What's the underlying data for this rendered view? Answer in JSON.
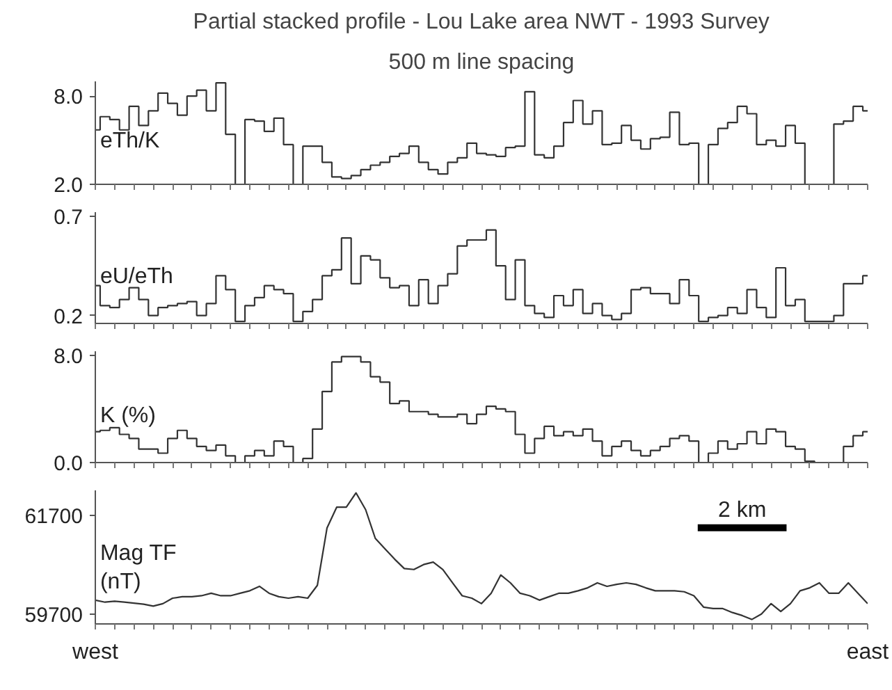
{
  "chart_data": [
    {
      "type": "step",
      "title": "Partial stacked profile - Lou Lake area NWT - 1993 Survey",
      "subtitle": "500 m line spacing",
      "ylabel": "eTh/K",
      "color": "#333333",
      "categories": [
        null,
        null,
        null,
        null,
        null,
        null,
        null,
        null,
        null,
        null,
        null,
        null,
        null,
        null,
        null,
        null,
        null,
        null,
        null,
        null,
        null,
        null,
        null,
        null,
        null,
        null,
        null,
        null,
        null,
        null,
        null,
        null,
        null,
        null,
        null,
        null,
        null,
        null,
        null,
        null,
        null,
        null,
        null,
        null,
        null,
        null,
        null,
        null,
        null,
        null,
        null,
        null,
        null,
        null,
        null,
        null,
        null,
        null,
        null,
        null,
        null,
        null,
        null,
        null,
        null,
        null,
        null,
        null,
        null,
        null,
        null,
        null,
        null,
        null,
        null,
        null,
        null,
        null,
        null,
        null,
        null
      ],
      "values": [
        5.7,
        6.6,
        6.4,
        5.7,
        7.3,
        6.0,
        7.0,
        8.2,
        7.5,
        6.7,
        8.0,
        8.4,
        7.0,
        8.9,
        5.4,
        2.0,
        6.4,
        6.3,
        5.6,
        6.5,
        4.7,
        2.0,
        4.6,
        4.6,
        3.5,
        2.5,
        2.4,
        2.6,
        3.0,
        3.3,
        3.5,
        3.9,
        4.1,
        4.6,
        3.5,
        3.0,
        2.7,
        3.5,
        3.8,
        4.8,
        4.1,
        4.0,
        3.9,
        4.5,
        4.6,
        8.3,
        4.0,
        3.8,
        4.6,
        6.2,
        7.7,
        6.1,
        7.0,
        4.7,
        4.8,
        6.0,
        5.0,
        4.4,
        5.1,
        5.2,
        6.9,
        4.7,
        4.8,
        2.0,
        4.7,
        5.8,
        6.2,
        7.3,
        6.8,
        4.7,
        5.0,
        4.6,
        6.0,
        4.8,
        2.0,
        2.0,
        2.0,
        6.1,
        6.3,
        7.3,
        7.0
      ],
      "ylim": [
        2.0,
        9.0
      ],
      "yticks": [
        {
          "value": 2,
          "label": "2.0"
        },
        {
          "value": 8,
          "label": "8.0"
        }
      ],
      "tick_labels": "y"
    },
    {
      "type": "step",
      "ylabel": "eU/eTh",
      "color": "#333333",
      "categories": [
        null,
        null,
        null,
        null,
        null,
        null,
        null,
        null,
        null,
        null,
        null,
        null,
        null,
        null,
        null,
        null,
        null,
        null,
        null,
        null,
        null,
        null,
        null,
        null,
        null,
        null,
        null,
        null,
        null,
        null,
        null,
        null,
        null,
        null,
        null,
        null,
        null,
        null,
        null,
        null,
        null,
        null,
        null,
        null,
        null,
        null,
        null,
        null,
        null,
        null,
        null,
        null,
        null,
        null,
        null,
        null,
        null,
        null,
        null,
        null,
        null,
        null,
        null,
        null,
        null,
        null,
        null,
        null,
        null,
        null,
        null,
        null,
        null,
        null,
        null,
        null,
        null,
        null,
        null,
        null,
        null
      ],
      "values": [
        0.35,
        0.25,
        0.24,
        0.28,
        0.34,
        0.28,
        0.2,
        0.24,
        0.25,
        0.26,
        0.27,
        0.2,
        0.26,
        0.4,
        0.33,
        0.17,
        0.25,
        0.29,
        0.35,
        0.33,
        0.31,
        0.17,
        0.22,
        0.28,
        0.4,
        0.43,
        0.59,
        0.36,
        0.5,
        0.48,
        0.39,
        0.34,
        0.35,
        0.25,
        0.38,
        0.26,
        0.35,
        0.41,
        0.55,
        0.58,
        0.58,
        0.63,
        0.45,
        0.28,
        0.48,
        0.25,
        0.21,
        0.19,
        0.3,
        0.25,
        0.33,
        0.21,
        0.26,
        0.2,
        0.18,
        0.21,
        0.33,
        0.34,
        0.31,
        0.31,
        0.26,
        0.38,
        0.3,
        0.17,
        0.19,
        0.2,
        0.24,
        0.21,
        0.33,
        0.24,
        0.19,
        0.44,
        0.25,
        0.28,
        0.17,
        0.17,
        0.17,
        0.2,
        0.36,
        0.36,
        0.4
      ],
      "ylim": [
        0.16,
        0.72
      ],
      "yticks": [
        0.2,
        0.7
      ],
      "tick_labels": "y"
    },
    {
      "type": "step",
      "ylabel": "K (%)",
      "color": "#333333",
      "categories": [
        null,
        null,
        null,
        null,
        null,
        null,
        null,
        null,
        null,
        null,
        null,
        null,
        null,
        null,
        null,
        null,
        null,
        null,
        null,
        null,
        null,
        null,
        null,
        null,
        null,
        null,
        null,
        null,
        null,
        null,
        null,
        null,
        null,
        null,
        null,
        null,
        null,
        null,
        null,
        null,
        null,
        null,
        null,
        null,
        null,
        null,
        null,
        null,
        null,
        null,
        null,
        null,
        null,
        null,
        null,
        null,
        null,
        null,
        null,
        null,
        null,
        null,
        null,
        null,
        null,
        null,
        null,
        null,
        null,
        null,
        null,
        null,
        null,
        null,
        null,
        null,
        null,
        null,
        null,
        null,
        null
      ],
      "values": [
        2.3,
        2.4,
        2.6,
        2.1,
        1.8,
        1.0,
        1.0,
        0.7,
        1.8,
        2.4,
        1.8,
        1.2,
        0.9,
        1.3,
        0.5,
        0.0,
        0.5,
        0.9,
        0.5,
        1.6,
        1.2,
        0.0,
        0.3,
        2.5,
        5.3,
        7.5,
        7.9,
        7.9,
        7.5,
        6.4,
        6.0,
        4.4,
        4.6,
        3.8,
        3.8,
        3.6,
        3.4,
        3.4,
        3.6,
        2.9,
        3.6,
        4.2,
        4.0,
        3.8,
        2.1,
        0.7,
        1.8,
        2.7,
        2.0,
        2.3,
        2.0,
        2.5,
        1.6,
        0.5,
        1.2,
        1.6,
        0.9,
        0.5,
        0.9,
        1.2,
        1.8,
        2.0,
        1.6,
        0.0,
        0.7,
        1.6,
        1.0,
        1.4,
        2.3,
        1.4,
        2.5,
        2.3,
        1.2,
        1.0,
        0.1,
        0.0,
        0.0,
        0.0,
        1.2,
        2.0,
        2.3
      ],
      "ylim": [
        0.0,
        8.3
      ],
      "yticks": [
        {
          "value": 0,
          "label": "0.0"
        },
        {
          "value": 8,
          "label": "8.0"
        }
      ],
      "tick_labels": "y"
    },
    {
      "type": "line",
      "ylabel": "Mag TF\n(nT)",
      "color": "#333333",
      "annotations": [
        "west",
        "east",
        "2 km"
      ],
      "categories": [
        null,
        null,
        null,
        null,
        null,
        null,
        null,
        null,
        null,
        null,
        null,
        null,
        null,
        null,
        null,
        null,
        null,
        null,
        null,
        null,
        null,
        null,
        null,
        null,
        null,
        null,
        null,
        null,
        null,
        null,
        null,
        null,
        null,
        null,
        null,
        null,
        null,
        null,
        null,
        null,
        null,
        null,
        null,
        null,
        null,
        null,
        null,
        null,
        null,
        null,
        null,
        null,
        null,
        null,
        null,
        null,
        null,
        null,
        null,
        null,
        null,
        null,
        null,
        null,
        null,
        null,
        null,
        null,
        null,
        null,
        null,
        null,
        null,
        null,
        null,
        null,
        null,
        null,
        null,
        null,
        null
      ],
      "values": [
        59980,
        59940,
        59960,
        59940,
        59920,
        59900,
        59860,
        59910,
        60020,
        60050,
        60050,
        60070,
        60120,
        60070,
        60070,
        60120,
        60170,
        60260,
        60120,
        60050,
        60020,
        60050,
        60020,
        60280,
        61440,
        61860,
        61860,
        62150,
        61810,
        61230,
        61020,
        60810,
        60620,
        60600,
        60700,
        60750,
        60600,
        60330,
        60070,
        60020,
        59910,
        60120,
        60490,
        60330,
        60120,
        60070,
        59980,
        60050,
        60120,
        60120,
        60170,
        60230,
        60330,
        60260,
        60300,
        60330,
        60300,
        60230,
        60170,
        60170,
        60170,
        60150,
        60070,
        59840,
        59810,
        59810,
        59730,
        59670,
        59590,
        59700,
        59910,
        59750,
        59910,
        60170,
        60230,
        60330,
        60120,
        60120,
        60330,
        60120,
        59910
      ],
      "ylim": [
        59500,
        62200
      ],
      "yticks": [
        59700,
        61700
      ],
      "tick_labels": "y"
    }
  ]
}
